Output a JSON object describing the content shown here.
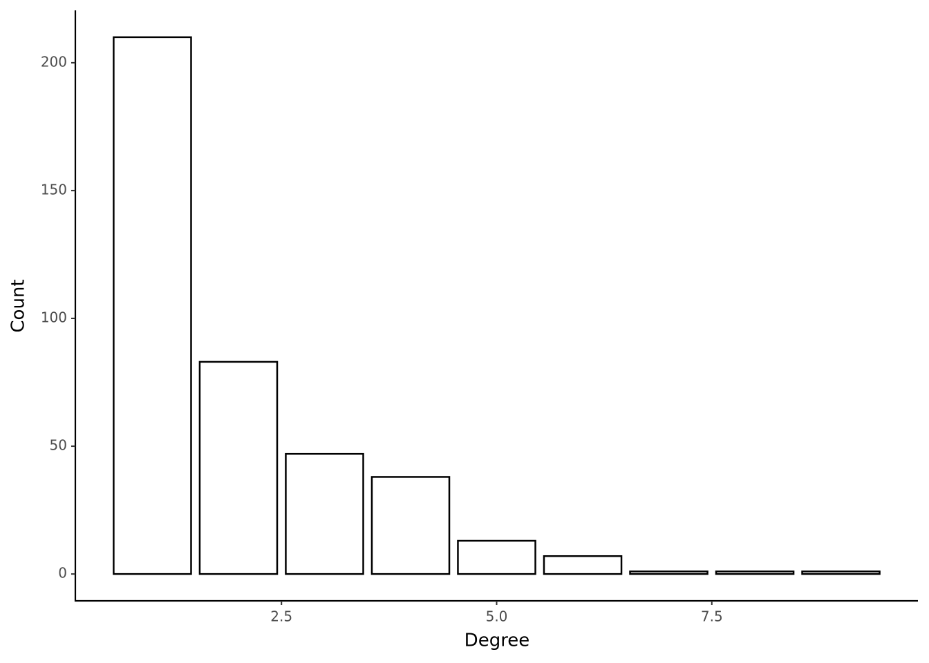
{
  "chart_data": {
    "type": "bar",
    "x_label": "Degree",
    "y_label": "Count",
    "x": [
      1,
      2,
      3,
      4,
      5,
      6,
      7,
      8,
      9
    ],
    "values": [
      210,
      83,
      47,
      38,
      13,
      7,
      1,
      1,
      1
    ],
    "color": "#ffffff",
    "edge_color": "#000000",
    "xlim": [
      0.105,
      9.895
    ],
    "xticks": [
      2.5,
      {
        "value": 5,
        "label": "5.0"
      },
      7.5
    ],
    "ylim": [
      -10.5,
      220.5
    ],
    "yticks": [
      0,
      50,
      100,
      150,
      200
    ],
    "grid": false
  }
}
